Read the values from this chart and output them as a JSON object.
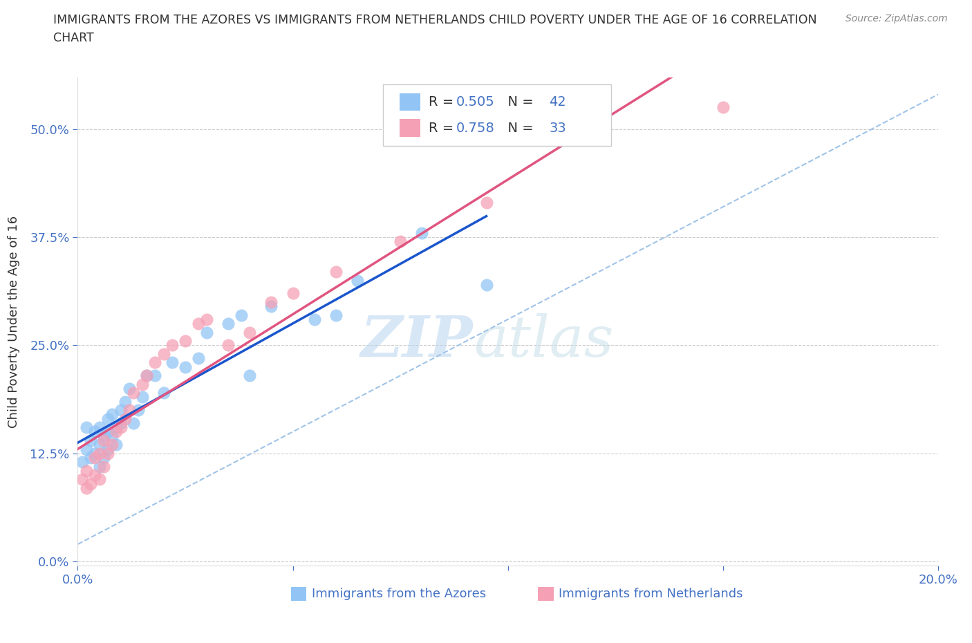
{
  "title_line1": "IMMIGRANTS FROM THE AZORES VS IMMIGRANTS FROM NETHERLANDS CHILD POVERTY UNDER THE AGE OF 16 CORRELATION",
  "title_line2": "CHART",
  "source": "Source: ZipAtlas.com",
  "ylabel": "Child Poverty Under the Age of 16",
  "xlabel_azores": "Immigrants from the Azores",
  "xlabel_netherlands": "Immigrants from Netherlands",
  "watermark_ZIP": "ZIP",
  "watermark_atlas": "atlas",
  "xlim": [
    0.0,
    0.2
  ],
  "ylim": [
    -0.005,
    0.56
  ],
  "yticks": [
    0.0,
    0.125,
    0.25,
    0.375,
    0.5
  ],
  "ytick_labels": [
    "0.0%",
    "12.5%",
    "25.0%",
    "37.5%",
    "50.0%"
  ],
  "xticks": [
    0.0,
    0.05,
    0.1,
    0.15,
    0.2
  ],
  "xtick_labels": [
    "0.0%",
    "",
    "",
    "",
    "20.0%"
  ],
  "color_azores": "#92c5f5",
  "color_netherlands": "#f5a0b5",
  "line_color_azores": "#1a56cc",
  "line_color_netherlands": "#e05580",
  "dash_color": "#a0c4e8",
  "R_azores": 0.505,
  "N_azores": 42,
  "R_netherlands": 0.758,
  "N_netherlands": 33,
  "azores_x": [
    0.001,
    0.002,
    0.002,
    0.003,
    0.003,
    0.004,
    0.004,
    0.005,
    0.005,
    0.005,
    0.006,
    0.006,
    0.007,
    0.007,
    0.007,
    0.008,
    0.008,
    0.009,
    0.009,
    0.01,
    0.01,
    0.011,
    0.012,
    0.013,
    0.014,
    0.015,
    0.016,
    0.018,
    0.02,
    0.022,
    0.025,
    0.028,
    0.03,
    0.035,
    0.038,
    0.04,
    0.045,
    0.055,
    0.06,
    0.065,
    0.08,
    0.095
  ],
  "azores_y": [
    0.115,
    0.13,
    0.155,
    0.12,
    0.14,
    0.125,
    0.15,
    0.11,
    0.135,
    0.155,
    0.12,
    0.145,
    0.13,
    0.15,
    0.165,
    0.145,
    0.17,
    0.135,
    0.155,
    0.16,
    0.175,
    0.185,
    0.2,
    0.16,
    0.175,
    0.19,
    0.215,
    0.215,
    0.195,
    0.23,
    0.225,
    0.235,
    0.265,
    0.275,
    0.285,
    0.215,
    0.295,
    0.28,
    0.285,
    0.325,
    0.38,
    0.32
  ],
  "netherlands_x": [
    0.001,
    0.002,
    0.002,
    0.003,
    0.004,
    0.004,
    0.005,
    0.005,
    0.006,
    0.006,
    0.007,
    0.008,
    0.009,
    0.01,
    0.011,
    0.012,
    0.013,
    0.015,
    0.016,
    0.018,
    0.02,
    0.022,
    0.025,
    0.028,
    0.03,
    0.035,
    0.04,
    0.045,
    0.05,
    0.06,
    0.075,
    0.095,
    0.15
  ],
  "netherlands_y": [
    0.095,
    0.085,
    0.105,
    0.09,
    0.1,
    0.12,
    0.095,
    0.125,
    0.11,
    0.14,
    0.125,
    0.135,
    0.15,
    0.155,
    0.165,
    0.175,
    0.195,
    0.205,
    0.215,
    0.23,
    0.24,
    0.25,
    0.255,
    0.275,
    0.28,
    0.25,
    0.265,
    0.3,
    0.31,
    0.335,
    0.37,
    0.415,
    0.525
  ],
  "title_color": "#333333",
  "tick_color": "#4472c4",
  "grid_color": "#cccccc",
  "background_color": "#ffffff"
}
